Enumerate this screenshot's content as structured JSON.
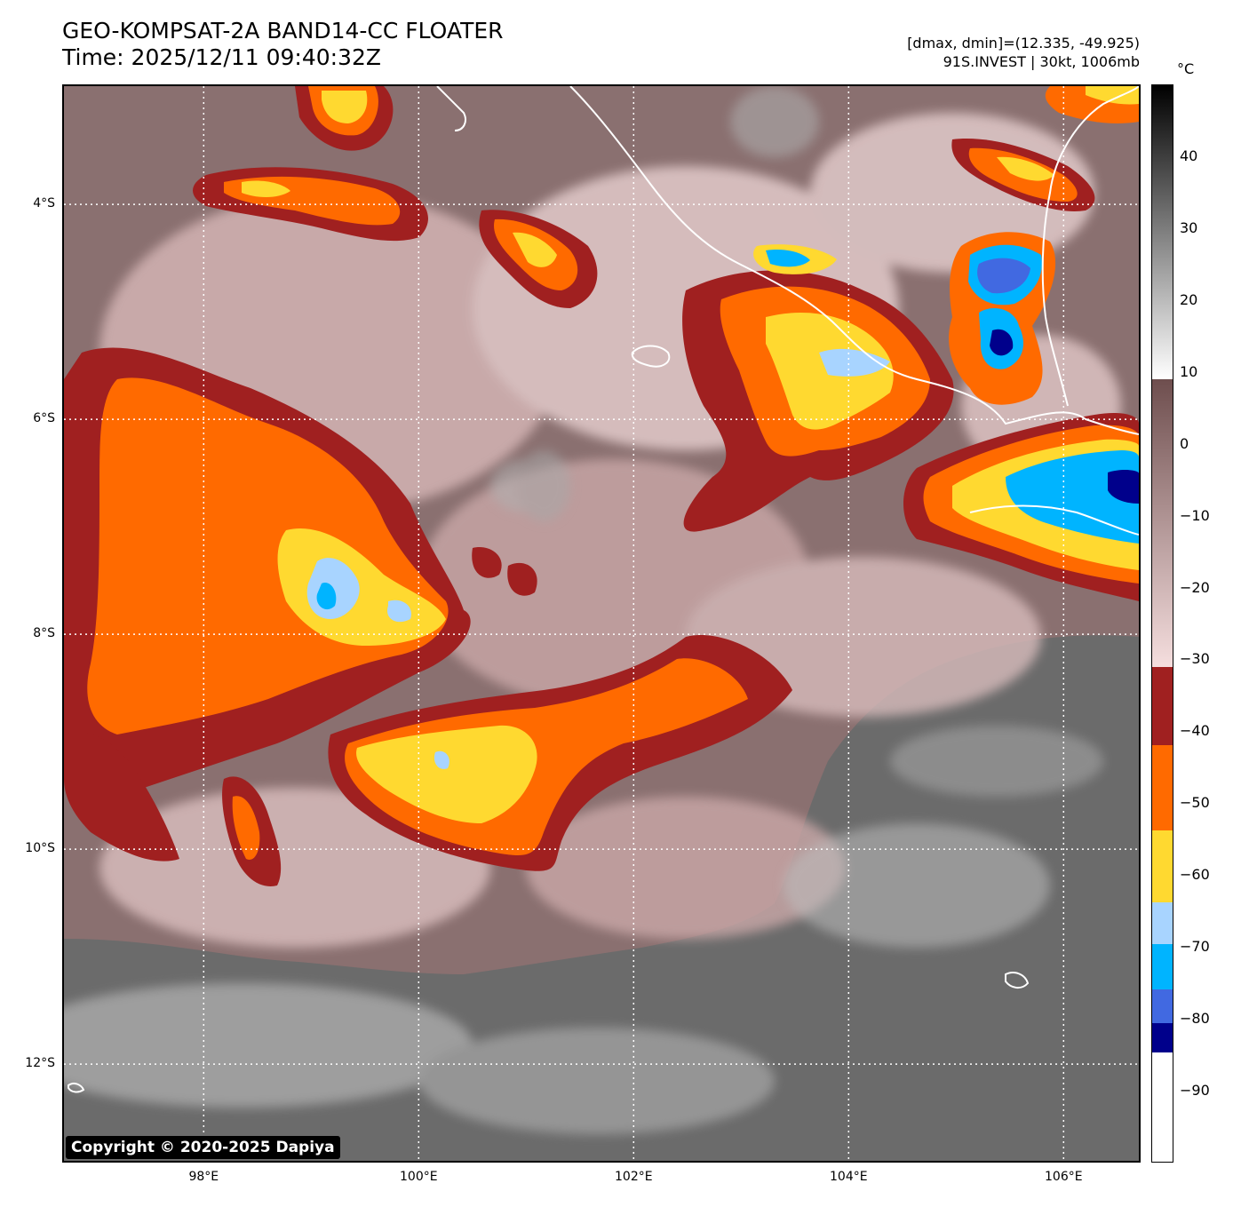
{
  "header": {
    "title_line1": "GEO-KOMPSAT-2A BAND14-CC FLOATER",
    "title_line2": "Time: 2025/12/11 09:40:32Z",
    "info_line1": "[dmax, dmin]=(12.335, -49.925)",
    "info_line2": "91S.INVEST | 30kt, 1006mb"
  },
  "map": {
    "lon_ticks": [
      {
        "value": 98,
        "label": "98°E"
      },
      {
        "value": 100,
        "label": "100°E"
      },
      {
        "value": 102,
        "label": "102°E"
      },
      {
        "value": 104,
        "label": "104°E"
      },
      {
        "value": 106,
        "label": "106°E"
      }
    ],
    "lat_ticks": [
      {
        "value": -4,
        "label": "4°S"
      },
      {
        "value": -6,
        "label": "6°S"
      },
      {
        "value": -8,
        "label": "8°S"
      },
      {
        "value": -10,
        "label": "10°S"
      },
      {
        "value": -12,
        "label": "12°S"
      }
    ],
    "lon_range": [
      96.7,
      106.7
    ],
    "lat_range": [
      -12.9,
      -2.9
    ],
    "copyright": "Copyright © 2020-2025 Dapiya"
  },
  "colorbar": {
    "unit": "°C",
    "range": [
      -100,
      50
    ],
    "tick_labels": [
      "40",
      "30",
      "20",
      "10",
      "0",
      "−10",
      "−20",
      "−30",
      "−40",
      "−50",
      "−60",
      "−70",
      "−80",
      "−90"
    ],
    "tick_values": [
      40,
      30,
      20,
      10,
      0,
      -10,
      -20,
      -30,
      -40,
      -50,
      -60,
      -70,
      -80,
      -90
    ]
  }
}
